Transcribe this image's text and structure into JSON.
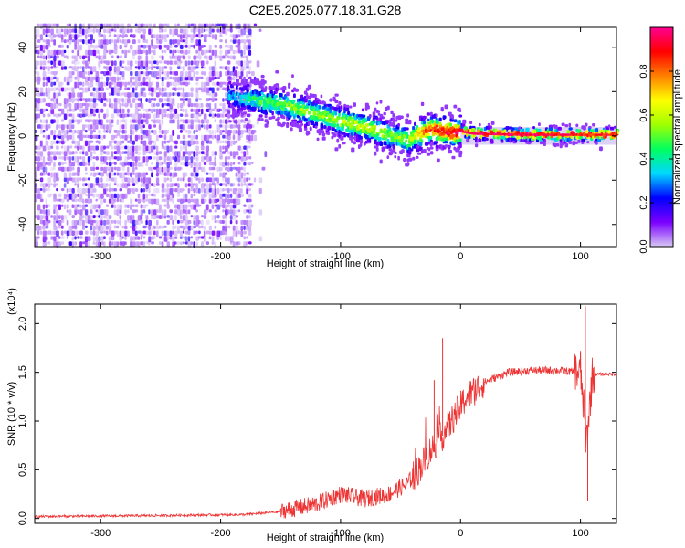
{
  "figure": {
    "title": "C2E5.2025.077.18.31.G28"
  },
  "chart_data": [
    {
      "type": "heatmap",
      "xlabel": "Height of straight line (km)",
      "ylabel": "Frequency (Hz)",
      "xlim": [
        -355,
        130
      ],
      "ylim": [
        -50,
        49
      ],
      "x_ticks": [
        -300,
        -200,
        -100,
        0,
        100
      ],
      "x_tick_labels": [
        "-300",
        "-200",
        "-100",
        "0",
        "100"
      ],
      "y_ticks": [
        -40,
        -20,
        0,
        20,
        40
      ],
      "y_tick_labels": [
        "-40",
        "-20",
        "0",
        "20",
        "40"
      ],
      "colorbar": {
        "label": "Normalized spectral amplitude",
        "range": [
          0.0,
          1.0
        ],
        "ticks": [
          0.0,
          0.2,
          0.4,
          0.6,
          0.8
        ],
        "tick_labels": [
          "0.0",
          "0.2",
          "0.4",
          "0.6",
          "0.8"
        ],
        "colors": [
          "#d8c8f4",
          "#7a00ff",
          "#0000ff",
          "#00d8ff",
          "#00ff60",
          "#a0ff00",
          "#ffff00",
          "#ff8000",
          "#ff0000",
          "#ff0090"
        ]
      },
      "ridge": {
        "x": [
          -195,
          -170,
          -150,
          -130,
          -110,
          -90,
          -75,
          -60,
          -45,
          -35,
          -25,
          -15,
          -5,
          0,
          10,
          50,
          100,
          130
        ],
        "frequency": [
          18,
          16,
          14,
          11,
          8,
          5,
          3,
          0,
          -2,
          1,
          3,
          2,
          1,
          2,
          1,
          0.5,
          0.5,
          0.5
        ],
        "amplitude": [
          0.3,
          0.45,
          0.5,
          0.55,
          0.55,
          0.6,
          0.6,
          0.55,
          0.55,
          0.75,
          0.85,
          0.9,
          0.95,
          0.95,
          0.95,
          0.95,
          0.9,
          0.9
        ]
      },
      "noise_region_x": [
        -355,
        -175
      ],
      "grid": false
    },
    {
      "type": "line",
      "xlabel": "Height of straight line (km)",
      "ylabel": "SNR (10 * v/v)",
      "y_scale_label": "(x10⁴)",
      "xlim": [
        -355,
        130
      ],
      "ylim": [
        -0.05,
        2.2
      ],
      "x_ticks": [
        -300,
        -200,
        -100,
        0,
        100
      ],
      "x_tick_labels": [
        "-300",
        "-200",
        "-100",
        "0",
        "100"
      ],
      "y_ticks": [
        0.0,
        0.5,
        1.0,
        1.5,
        2.0
      ],
      "y_tick_labels": [
        "0.0",
        "0.5",
        "1.0",
        "1.5",
        "2.0"
      ],
      "series_color": "#ee3333",
      "envelope": {
        "x": [
          -355,
          -250,
          -180,
          -150,
          -120,
          -100,
          -80,
          -60,
          -45,
          -35,
          -25,
          -15,
          -5,
          5,
          20,
          40,
          60,
          80,
          100,
          105,
          110,
          130
        ],
        "y": [
          0.02,
          0.03,
          0.04,
          0.07,
          0.15,
          0.25,
          0.2,
          0.25,
          0.35,
          0.5,
          0.7,
          0.85,
          1.05,
          1.25,
          1.4,
          1.5,
          1.52,
          1.52,
          1.5,
          0.8,
          1.48,
          1.48
        ]
      },
      "spikes": [
        {
          "x": -22,
          "y": 1.42
        },
        {
          "x": -15,
          "y": 1.85
        },
        {
          "x": 100,
          "y": 1.72
        },
        {
          "x": 104,
          "y": 2.18
        },
        {
          "x": 106,
          "y": 0.18
        }
      ],
      "grid": false
    }
  ]
}
